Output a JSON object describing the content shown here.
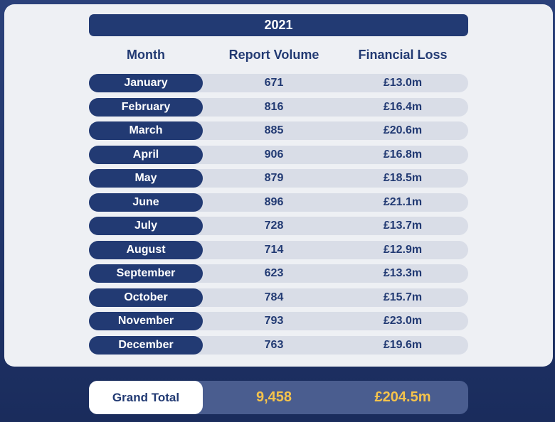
{
  "chart_data": {
    "type": "table",
    "title": "2021",
    "columns": [
      "Month",
      "Report Volume",
      "Financial Loss"
    ],
    "rows": [
      {
        "month": "January",
        "volume": "671",
        "loss": "£13.0m"
      },
      {
        "month": "February",
        "volume": "816",
        "loss": "£16.4m"
      },
      {
        "month": "March",
        "volume": "885",
        "loss": "£20.6m"
      },
      {
        "month": "April",
        "volume": "906",
        "loss": "£16.8m"
      },
      {
        "month": "May",
        "volume": "879",
        "loss": "£18.5m"
      },
      {
        "month": "June",
        "volume": "896",
        "loss": "£21.1m"
      },
      {
        "month": "July",
        "volume": "728",
        "loss": "£13.7m"
      },
      {
        "month": "August",
        "volume": "714",
        "loss": "£12.9m"
      },
      {
        "month": "September",
        "volume": "623",
        "loss": "£13.3m"
      },
      {
        "month": "October",
        "volume": "784",
        "loss": "£15.7m"
      },
      {
        "month": "November",
        "volume": "793",
        "loss": "£23.0m"
      },
      {
        "month": "December",
        "volume": "763",
        "loss": "£19.6m"
      }
    ],
    "total": {
      "label": "Grand Total",
      "volume": "9,458",
      "loss": "£204.5m"
    }
  },
  "colors": {
    "navy": "#223a73",
    "row_background": "#d9dde7",
    "total_accent": "#f5c34b",
    "card_background": "#eef0f4"
  }
}
